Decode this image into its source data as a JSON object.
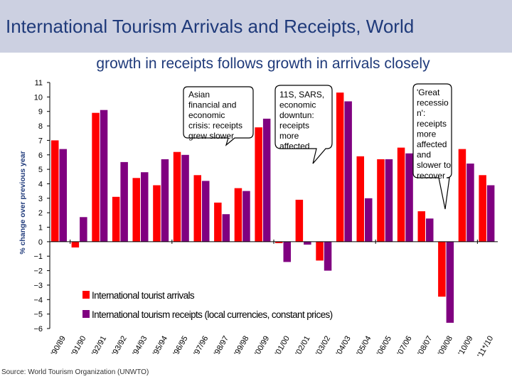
{
  "title": "International Tourism Arrivals and Receipts, World",
  "subtitle": "growth in receipts follows growth in arrivals closely",
  "source": "Source: World Tourism Organization (UNWTO)",
  "colors": {
    "arrivals": "#ff0000",
    "receipts": "#800080",
    "title_band": "#ccd0e1",
    "title_text": "#1f3a7a"
  },
  "chart_data": {
    "type": "bar",
    "title": "International Tourism Arrivals and Receipts, World",
    "ylabel": "% change over previous year",
    "xlabel": "",
    "ylim": [
      -6,
      11
    ],
    "yticks": [
      -6,
      -5,
      -4,
      -3,
      -2,
      -1,
      0,
      1,
      2,
      3,
      4,
      5,
      6,
      7,
      8,
      9,
      10,
      11
    ],
    "categories": [
      "'90/89",
      "'91/90",
      "'92/91",
      "'93/92",
      "'94/93",
      "'95/94",
      "'96/95",
      "'97/96",
      "'98/97",
      "'99/98",
      "'00/99",
      "'01/00",
      "'02/01",
      "'03/02",
      "'04/03",
      "'05/04",
      "'06/05",
      "'07/06",
      "'08/07",
      "'09/08",
      "'10/09",
      "'11*/10"
    ],
    "series": [
      {
        "name": "International tourist arrivals",
        "color": "#ff0000",
        "values": [
          7.0,
          -0.4,
          8.9,
          3.1,
          4.4,
          3.9,
          6.2,
          4.6,
          2.7,
          3.7,
          7.9,
          -0.1,
          2.9,
          -1.3,
          10.3,
          5.9,
          5.7,
          6.5,
          2.1,
          -3.8,
          6.4,
          4.6
        ]
      },
      {
        "name": "International tourism receipts (local currencies, constant prices)",
        "color": "#800080",
        "values": [
          6.4,
          1.7,
          9.1,
          5.5,
          4.8,
          5.7,
          6.0,
          4.2,
          1.9,
          3.5,
          8.5,
          -1.4,
          -0.2,
          -2.0,
          9.7,
          3.0,
          5.7,
          6.1,
          1.6,
          -5.6,
          5.4,
          3.9
        ]
      }
    ],
    "legend": "bottom-center",
    "annotations": [
      {
        "lines": [
          "Asian",
          "financial and",
          "economic",
          "crisis: receipts",
          "grew slower"
        ]
      },
      {
        "lines": [
          "11S, SARS,",
          "economic",
          "downtun:",
          "receipts",
          "more",
          "affected"
        ]
      },
      {
        "lines": [
          "'Great",
          "recessio",
          "n':",
          "receipts",
          "more",
          "affected",
          "and",
          "slower to",
          "recover"
        ]
      }
    ]
  }
}
